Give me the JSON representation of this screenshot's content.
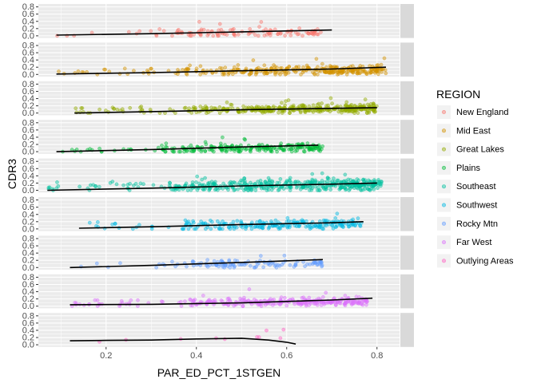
{
  "chart_data": {
    "type": "scatter",
    "title": "",
    "xlabel": "PAR_ED_PCT_1STGEN",
    "ylabel": "CDR3",
    "xlim": [
      0.05,
      0.85
    ],
    "ylim": [
      -0.06,
      0.88
    ],
    "x_ticks": [
      "0.2",
      "0.4",
      "0.6",
      "0.8"
    ],
    "y_ticks": [
      "0.0",
      "0.2",
      "0.4",
      "0.6",
      "0.8"
    ],
    "grid": true,
    "legend_title": "REGION",
    "legend_position": "right",
    "series": [
      {
        "name": "New England",
        "strip": "New England",
        "color": "#F8766D",
        "points_range": [
          0.08,
          0.68
        ],
        "points_level": 0.05,
        "points_spread": 0.12,
        "n_points": 120,
        "fit": {
          "x": [
            0.09,
            0.3,
            0.5,
            0.7
          ],
          "y": [
            0.02,
            0.06,
            0.11,
            0.16
          ]
        }
      },
      {
        "name": "Mid East",
        "strip": "Mid East",
        "color": "#D39200",
        "points_range": [
          0.09,
          0.82
        ],
        "points_level": 0.07,
        "points_spread": 0.14,
        "n_points": 320,
        "fit": {
          "x": [
            0.09,
            0.3,
            0.5,
            0.7,
            0.82
          ],
          "y": [
            0.01,
            0.05,
            0.1,
            0.15,
            0.2
          ]
        }
      },
      {
        "name": "Great Lakes",
        "strip": "Great Lakes",
        "color": "#93AA00",
        "points_range": [
          0.13,
          0.8
        ],
        "points_level": 0.07,
        "points_spread": 0.12,
        "n_points": 380,
        "fit": {
          "x": [
            0.13,
            0.3,
            0.5,
            0.7,
            0.8
          ],
          "y": [
            0.0,
            0.04,
            0.09,
            0.13,
            0.15
          ]
        }
      },
      {
        "name": "Plains",
        "strip": "Plains",
        "color": "#00BA38",
        "points_range": [
          0.09,
          0.68
        ],
        "points_level": 0.07,
        "points_spread": 0.12,
        "n_points": 240,
        "fit": {
          "x": [
            0.09,
            0.3,
            0.5,
            0.67
          ],
          "y": [
            0.0,
            0.06,
            0.13,
            0.18
          ]
        }
      },
      {
        "name": "Southeast",
        "strip": "Southeast",
        "color": "#00C19F",
        "points_range": [
          0.07,
          0.81
        ],
        "points_level": 0.1,
        "points_spread": 0.16,
        "n_points": 460,
        "fit": {
          "x": [
            0.07,
            0.3,
            0.5,
            0.7,
            0.8
          ],
          "y": [
            0.0,
            0.06,
            0.12,
            0.17,
            0.2
          ]
        }
      },
      {
        "name": "Southwest",
        "strip": "Southwest",
        "color": "#00B9E3",
        "points_range": [
          0.14,
          0.77
        ],
        "points_level": 0.08,
        "points_spread": 0.14,
        "n_points": 240,
        "fit": {
          "x": [
            0.14,
            0.3,
            0.5,
            0.7,
            0.77
          ],
          "y": [
            0.02,
            0.06,
            0.12,
            0.17,
            0.2
          ]
        }
      },
      {
        "name": "Rocky Mtn",
        "strip": "Rocky Mtn",
        "color": "#619CFF",
        "points_range": [
          0.12,
          0.68
        ],
        "points_level": 0.07,
        "points_spread": 0.12,
        "n_points": 120,
        "fit": {
          "x": [
            0.12,
            0.3,
            0.5,
            0.68
          ],
          "y": [
            0.0,
            0.06,
            0.14,
            0.22
          ]
        }
      },
      {
        "name": "Far West",
        "strip": "Far West",
        "color": "#DB72FB",
        "points_range": [
          0.12,
          0.78
        ],
        "points_level": 0.08,
        "points_spread": 0.12,
        "n_points": 300,
        "fit": {
          "x": [
            0.12,
            0.3,
            0.5,
            0.7,
            0.79
          ],
          "y": [
            0.04,
            0.05,
            0.09,
            0.17,
            0.22
          ]
        }
      },
      {
        "name": "Outlying Areas",
        "strip": "Outlying Areas",
        "color": "#FF61C3",
        "points_range": [
          0.12,
          0.62
        ],
        "points_level": 0.15,
        "points_spread": 0.06,
        "n_points": 10,
        "fit": {
          "x": [
            0.12,
            0.2,
            0.3,
            0.4,
            0.5,
            0.56,
            0.6,
            0.62
          ],
          "y": [
            0.11,
            0.12,
            0.13,
            0.16,
            0.18,
            0.13,
            0.07,
            0.02
          ]
        }
      }
    ]
  }
}
